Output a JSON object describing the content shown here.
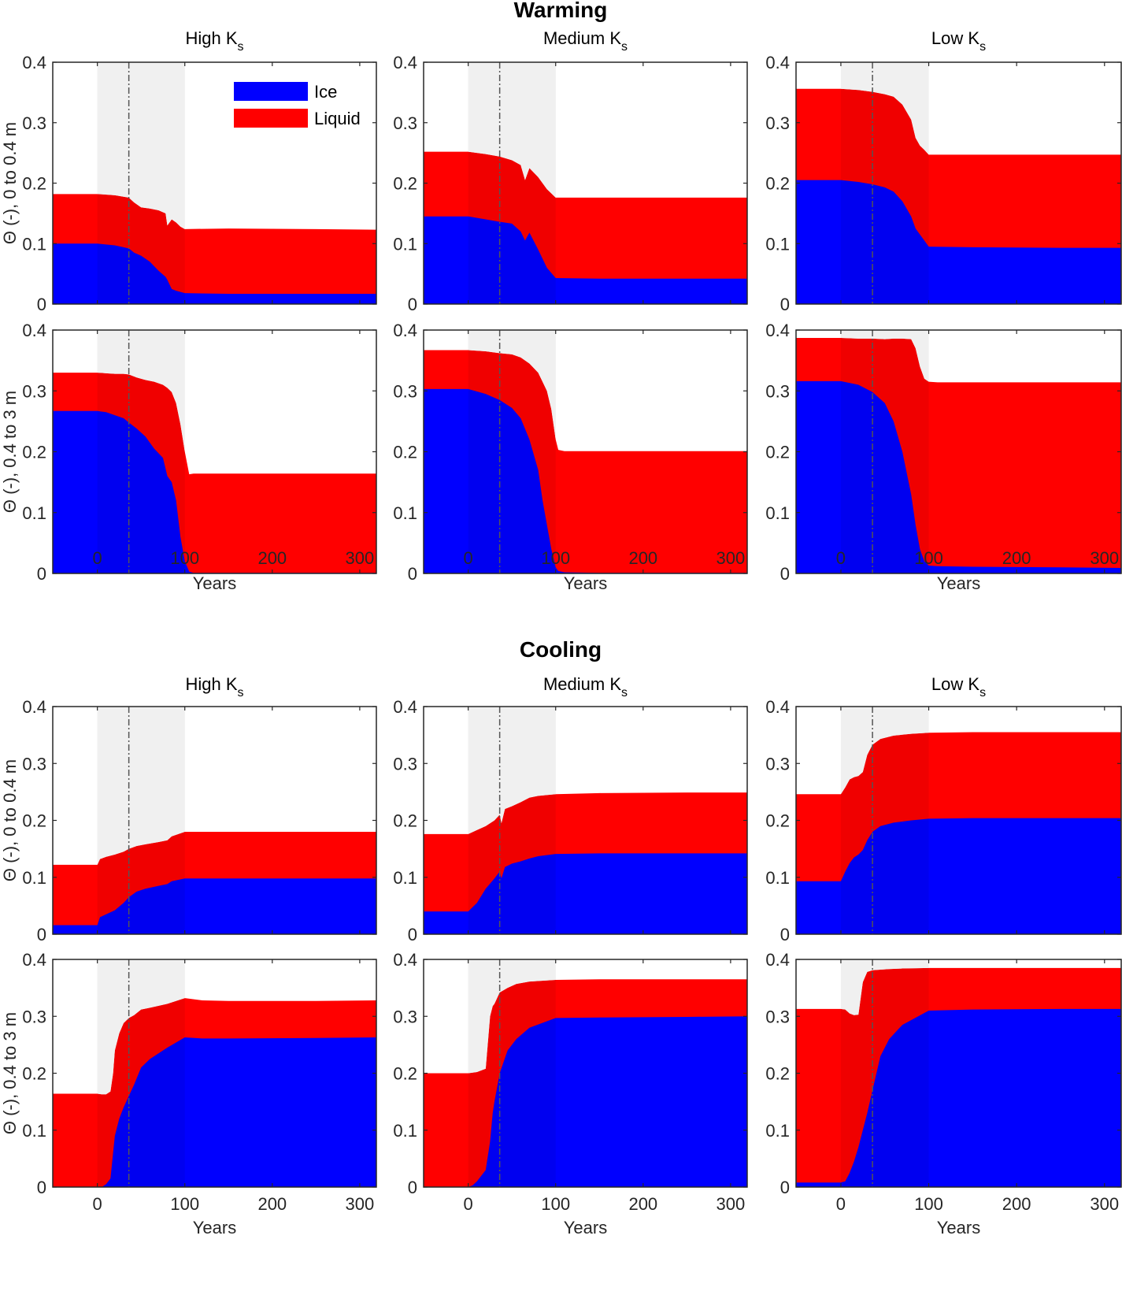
{
  "chart_data": {
    "type": "area",
    "figure_sections": [
      {
        "title": "Warming",
        "id": "warming"
      },
      {
        "title": "Cooling",
        "id": "cooling"
      }
    ],
    "column_titles": [
      {
        "main": "High K",
        "sub": "s"
      },
      {
        "main": "Medium K",
        "sub": "s"
      },
      {
        "main": "Low K",
        "sub": "s"
      }
    ],
    "row_ylabels": [
      "Θ (-), 0 to 0.4 m",
      "Θ (-), 0.4 to 3 m"
    ],
    "xlabel": "Years",
    "xlim": [
      -51,
      319
    ],
    "ylim": [
      0,
      0.4
    ],
    "xticks": [
      0,
      100,
      200,
      300
    ],
    "xtick_labels": [
      "0",
      "100",
      "200",
      "300"
    ],
    "yticks": [
      0,
      0.1,
      0.2,
      0.3,
      0.4
    ],
    "ytick_labels": [
      "0",
      "0.1",
      "0.2",
      "0.3",
      "0.4"
    ],
    "shaded_period": [
      0,
      100
    ],
    "marker_line_x": 36,
    "legend": {
      "placement": "top-right",
      "entries": [
        {
          "label": "Ice",
          "color": "#0000ff"
        },
        {
          "label": "Liquid",
          "color": "#ff0000"
        }
      ]
    },
    "colors": {
      "ice": "#0000ff",
      "liquid": "#ff0000",
      "shade": "#f0f0f0",
      "marker_line": "#555555"
    },
    "series": [
      "Ice",
      "Liquid"
    ],
    "panels": [
      {
        "section": "warming",
        "row": 0,
        "col": 0,
        "x": [
          -51,
          0,
          20,
          36,
          42,
          50,
          60,
          70,
          78,
          80,
          85,
          90,
          95,
          100,
          150,
          250,
          319
        ],
        "ice": [
          0.1,
          0.1,
          0.097,
          0.092,
          0.085,
          0.08,
          0.07,
          0.055,
          0.045,
          0.04,
          0.025,
          0.022,
          0.02,
          0.018,
          0.017,
          0.017,
          0.017
        ],
        "total": [
          0.182,
          0.182,
          0.18,
          0.176,
          0.168,
          0.16,
          0.158,
          0.155,
          0.15,
          0.13,
          0.14,
          0.135,
          0.128,
          0.124,
          0.125,
          0.124,
          0.123
        ]
      },
      {
        "section": "warming",
        "row": 0,
        "col": 1,
        "x": [
          -51,
          0,
          20,
          36,
          50,
          60,
          65,
          70,
          80,
          90,
          100,
          150,
          250,
          319
        ],
        "ice": [
          0.145,
          0.145,
          0.14,
          0.136,
          0.133,
          0.12,
          0.105,
          0.118,
          0.09,
          0.06,
          0.043,
          0.042,
          0.042,
          0.042
        ],
        "total": [
          0.252,
          0.252,
          0.248,
          0.244,
          0.238,
          0.23,
          0.205,
          0.225,
          0.21,
          0.19,
          0.176,
          0.176,
          0.176,
          0.176
        ]
      },
      {
        "section": "warming",
        "row": 0,
        "col": 2,
        "x": [
          -51,
          0,
          20,
          36,
          50,
          60,
          70,
          80,
          85,
          90,
          95,
          100,
          150,
          250,
          319
        ],
        "ice": [
          0.205,
          0.205,
          0.202,
          0.198,
          0.193,
          0.186,
          0.17,
          0.145,
          0.125,
          0.115,
          0.105,
          0.095,
          0.094,
          0.093,
          0.093
        ],
        "total": [
          0.356,
          0.356,
          0.354,
          0.351,
          0.347,
          0.343,
          0.33,
          0.305,
          0.275,
          0.262,
          0.255,
          0.247,
          0.247,
          0.247,
          0.247
        ]
      },
      {
        "section": "warming",
        "row": 1,
        "col": 0,
        "x": [
          -51,
          0,
          10,
          20,
          30,
          36,
          45,
          55,
          65,
          75,
          80,
          85,
          90,
          95,
          100,
          105,
          110,
          150,
          250,
          319
        ],
        "ice": [
          0.267,
          0.267,
          0.265,
          0.26,
          0.255,
          0.248,
          0.238,
          0.225,
          0.205,
          0.19,
          0.16,
          0.15,
          0.12,
          0.06,
          0.02,
          0.003,
          0.001,
          0.001,
          0.001,
          0.001
        ],
        "total": [
          0.33,
          0.33,
          0.329,
          0.328,
          0.328,
          0.327,
          0.322,
          0.318,
          0.315,
          0.31,
          0.305,
          0.298,
          0.28,
          0.245,
          0.2,
          0.163,
          0.164,
          0.164,
          0.164,
          0.164
        ]
      },
      {
        "section": "warming",
        "row": 1,
        "col": 1,
        "x": [
          -51,
          0,
          20,
          36,
          50,
          60,
          70,
          80,
          85,
          90,
          95,
          100,
          103,
          110,
          150,
          250,
          319
        ],
        "ice": [
          0.303,
          0.303,
          0.295,
          0.285,
          0.272,
          0.255,
          0.22,
          0.17,
          0.12,
          0.08,
          0.04,
          0.01,
          0.004,
          0.002,
          0.001,
          0.001,
          0.001
        ],
        "total": [
          0.367,
          0.367,
          0.365,
          0.362,
          0.36,
          0.355,
          0.345,
          0.33,
          0.315,
          0.3,
          0.27,
          0.22,
          0.203,
          0.201,
          0.201,
          0.201,
          0.201
        ]
      },
      {
        "section": "warming",
        "row": 1,
        "col": 2,
        "x": [
          -51,
          0,
          20,
          36,
          50,
          60,
          70,
          80,
          85,
          90,
          95,
          100,
          110,
          150,
          250,
          319
        ],
        "ice": [
          0.316,
          0.316,
          0.31,
          0.298,
          0.28,
          0.25,
          0.2,
          0.13,
          0.08,
          0.04,
          0.02,
          0.013,
          0.012,
          0.011,
          0.01,
          0.009
        ],
        "total": [
          0.387,
          0.387,
          0.386,
          0.386,
          0.385,
          0.386,
          0.386,
          0.385,
          0.37,
          0.34,
          0.32,
          0.315,
          0.314,
          0.314,
          0.314,
          0.314
        ]
      },
      {
        "section": "cooling",
        "row": 0,
        "col": 0,
        "x": [
          -51,
          0,
          3,
          10,
          20,
          30,
          36,
          45,
          55,
          70,
          80,
          85,
          100,
          150,
          250,
          319
        ],
        "ice": [
          0.016,
          0.016,
          0.03,
          0.035,
          0.042,
          0.055,
          0.065,
          0.075,
          0.08,
          0.085,
          0.088,
          0.093,
          0.098,
          0.098,
          0.098,
          0.098
        ],
        "total": [
          0.122,
          0.122,
          0.132,
          0.136,
          0.14,
          0.145,
          0.15,
          0.155,
          0.158,
          0.162,
          0.165,
          0.172,
          0.18,
          0.18,
          0.18,
          0.18
        ]
      },
      {
        "section": "cooling",
        "row": 0,
        "col": 1,
        "x": [
          -51,
          0,
          10,
          20,
          30,
          36,
          38,
          42,
          50,
          60,
          70,
          80,
          100,
          150,
          250,
          319
        ],
        "ice": [
          0.04,
          0.04,
          0.055,
          0.08,
          0.098,
          0.11,
          0.098,
          0.118,
          0.124,
          0.128,
          0.133,
          0.137,
          0.141,
          0.142,
          0.142,
          0.142
        ],
        "total": [
          0.176,
          0.176,
          0.183,
          0.19,
          0.2,
          0.21,
          0.195,
          0.22,
          0.225,
          0.232,
          0.24,
          0.243,
          0.246,
          0.248,
          0.249,
          0.249
        ]
      },
      {
        "section": "cooling",
        "row": 0,
        "col": 2,
        "x": [
          -51,
          0,
          5,
          10,
          15,
          20,
          25,
          30,
          36,
          45,
          60,
          80,
          100,
          150,
          250,
          319
        ],
        "ice": [
          0.093,
          0.093,
          0.11,
          0.125,
          0.135,
          0.14,
          0.148,
          0.165,
          0.18,
          0.19,
          0.196,
          0.2,
          0.203,
          0.204,
          0.204,
          0.204
        ],
        "total": [
          0.246,
          0.246,
          0.258,
          0.272,
          0.276,
          0.278,
          0.285,
          0.315,
          0.333,
          0.343,
          0.349,
          0.352,
          0.354,
          0.355,
          0.355,
          0.355
        ]
      },
      {
        "section": "cooling",
        "row": 1,
        "col": 0,
        "x": [
          -51,
          0,
          5,
          10,
          15,
          18,
          20,
          25,
          30,
          36,
          42,
          50,
          60,
          80,
          100,
          120,
          150,
          250,
          319
        ],
        "ice": [
          0.0,
          0.0,
          0.0,
          0.005,
          0.015,
          0.06,
          0.09,
          0.12,
          0.14,
          0.16,
          0.18,
          0.21,
          0.225,
          0.245,
          0.263,
          0.261,
          0.261,
          0.262,
          0.263
        ],
        "total": [
          0.164,
          0.164,
          0.163,
          0.163,
          0.168,
          0.2,
          0.24,
          0.27,
          0.288,
          0.297,
          0.302,
          0.312,
          0.315,
          0.322,
          0.332,
          0.328,
          0.327,
          0.327,
          0.328
        ]
      },
      {
        "section": "cooling",
        "row": 1,
        "col": 1,
        "x": [
          -51,
          0,
          5,
          10,
          20,
          25,
          28,
          30,
          36,
          45,
          55,
          70,
          100,
          150,
          250,
          319
        ],
        "ice": [
          0.0,
          0.0,
          0.003,
          0.01,
          0.03,
          0.08,
          0.13,
          0.15,
          0.2,
          0.24,
          0.26,
          0.28,
          0.297,
          0.298,
          0.299,
          0.3
        ],
        "total": [
          0.2,
          0.2,
          0.201,
          0.202,
          0.208,
          0.3,
          0.318,
          0.322,
          0.342,
          0.35,
          0.357,
          0.361,
          0.364,
          0.365,
          0.365,
          0.365
        ]
      },
      {
        "section": "cooling",
        "row": 1,
        "col": 2,
        "x": [
          -51,
          0,
          5,
          10,
          15,
          20,
          25,
          30,
          36,
          45,
          55,
          70,
          100,
          150,
          250,
          319
        ],
        "ice": [
          0.008,
          0.008,
          0.01,
          0.025,
          0.045,
          0.07,
          0.1,
          0.13,
          0.17,
          0.23,
          0.26,
          0.285,
          0.31,
          0.312,
          0.313,
          0.313
        ],
        "total": [
          0.313,
          0.313,
          0.312,
          0.305,
          0.302,
          0.303,
          0.36,
          0.378,
          0.381,
          0.382,
          0.383,
          0.384,
          0.385,
          0.385,
          0.385,
          0.385
        ]
      }
    ]
  }
}
